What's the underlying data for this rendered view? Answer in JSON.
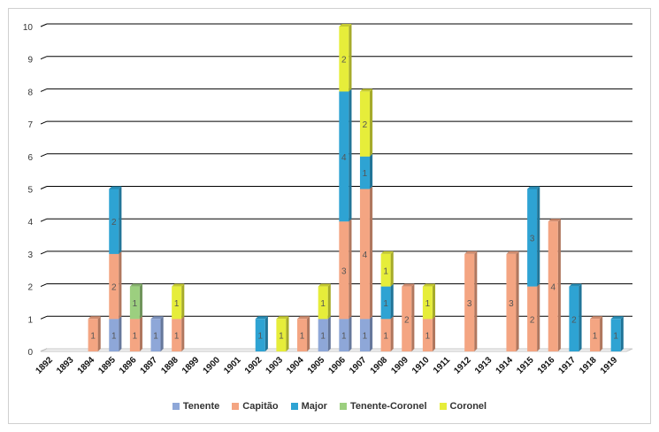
{
  "chart_data": {
    "type": "bar",
    "stacked": true,
    "three_d": true,
    "categories": [
      "1892",
      "1893",
      "1894",
      "1895",
      "1896",
      "1897",
      "1898",
      "1899",
      "1900",
      "1901",
      "1902",
      "1903",
      "1904",
      "1905",
      "1906",
      "1907",
      "1908",
      "1909",
      "1910",
      "1911",
      "1912",
      "1913",
      "1914",
      "1915",
      "1916",
      "1917",
      "1918",
      "1919"
    ],
    "series": [
      {
        "name": "Tenente",
        "color": "#8ea7d8",
        "values": [
          0,
          0,
          0,
          1,
          0,
          1,
          0,
          0,
          0,
          0,
          0,
          0,
          0,
          1,
          1,
          1,
          0,
          0,
          0,
          0,
          0,
          0,
          0,
          0,
          0,
          0,
          0,
          0
        ]
      },
      {
        "name": "Capitão",
        "color": "#f4a582",
        "values": [
          0,
          0,
          1,
          2,
          1,
          0,
          1,
          0,
          0,
          0,
          0,
          0,
          1,
          0,
          3,
          4,
          1,
          2,
          1,
          0,
          3,
          0,
          3,
          2,
          4,
          0,
          1,
          0
        ]
      },
      {
        "name": "Major",
        "color": "#2ea3d3",
        "values": [
          0,
          0,
          0,
          2,
          0,
          0,
          0,
          0,
          0,
          0,
          1,
          0,
          0,
          0,
          4,
          1,
          1,
          0,
          0,
          0,
          0,
          0,
          0,
          3,
          0,
          2,
          0,
          1
        ]
      },
      {
        "name": "Tenente-Coronel",
        "color": "#9ccf7f",
        "values": [
          0,
          0,
          0,
          0,
          1,
          0,
          0,
          0,
          0,
          0,
          0,
          0,
          0,
          0,
          0,
          0,
          0,
          0,
          0,
          0,
          0,
          0,
          0,
          0,
          0,
          0,
          0,
          0
        ]
      },
      {
        "name": "Coronel",
        "color": "#e6ed3a",
        "values": [
          0,
          0,
          0,
          0,
          0,
          0,
          1,
          0,
          0,
          0,
          0,
          1,
          0,
          1,
          2,
          2,
          1,
          0,
          1,
          0,
          0,
          0,
          0,
          0,
          0,
          0,
          0,
          0
        ]
      }
    ],
    "ylim": [
      0,
      10
    ],
    "yticks": [
      0,
      1,
      2,
      3,
      4,
      5,
      6,
      7,
      8,
      9,
      10
    ],
    "title": "",
    "xlabel": "",
    "ylabel": "",
    "grid": true,
    "legend_position": "bottom"
  }
}
